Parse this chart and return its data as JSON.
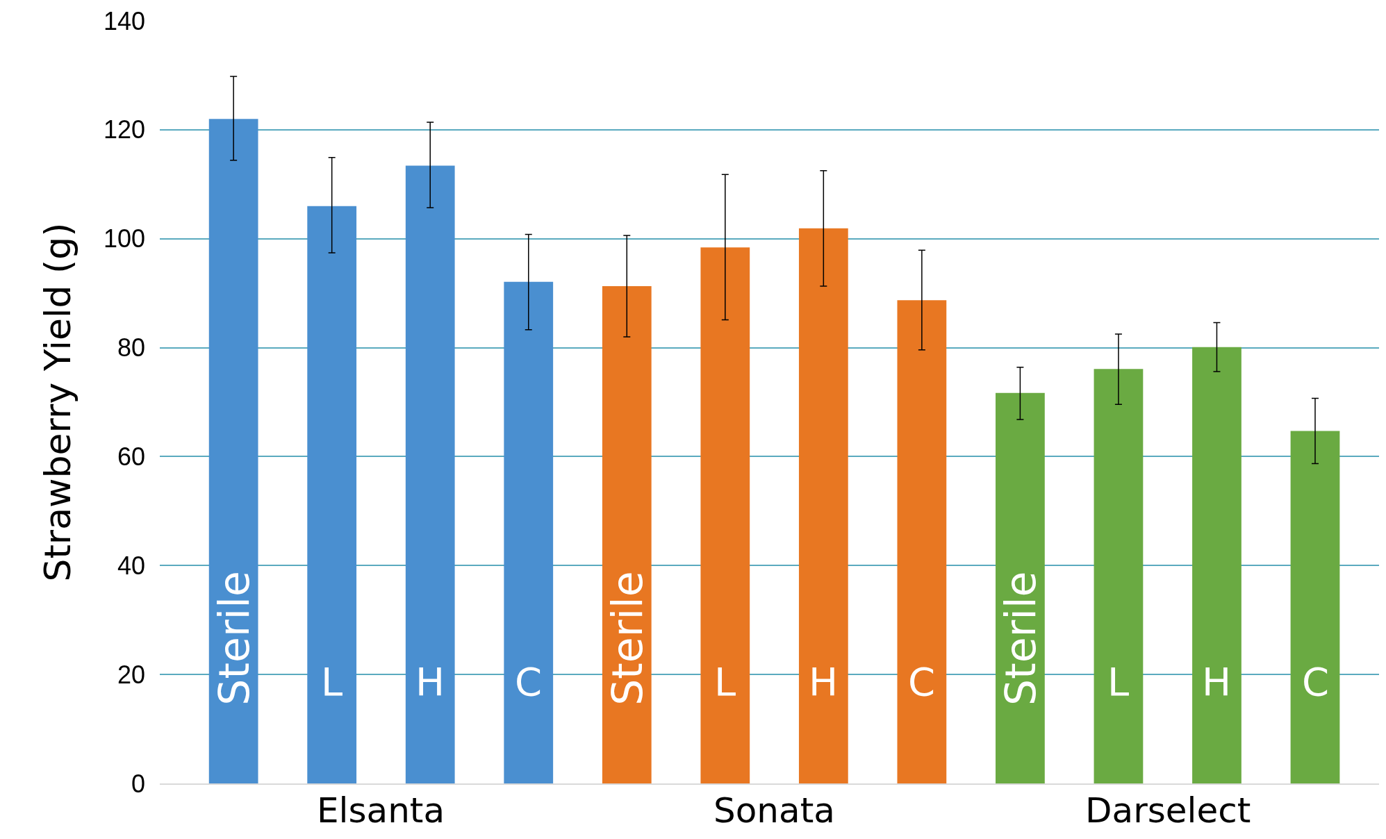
{
  "chart_data": {
    "type": "bar",
    "ylabel": "Strawberry Yield (g)",
    "categories": [
      "Sterile",
      "L",
      "H",
      "C",
      "Sterile",
      "L",
      "H",
      "C",
      "Sterile",
      "L",
      "H",
      "C"
    ],
    "values": [
      122.0,
      106.0,
      113.4,
      92.1,
      91.3,
      98.4,
      101.9,
      88.7,
      71.7,
      76.1,
      80.1,
      64.7
    ],
    "colors": [
      "#4a8fd0",
      "#4a8fd0",
      "#4a8fd0",
      "#4a8fd0",
      "#e87722",
      "#e87722",
      "#e87722",
      "#e87722",
      "#6aaa42",
      "#6aaa42",
      "#6aaa42",
      "#6aaa42"
    ],
    "errors": [
      [
        114.4,
        129.8
      ],
      [
        97.4,
        114.9
      ],
      [
        105.7,
        121.4
      ],
      [
        83.3,
        100.8
      ],
      [
        82.0,
        100.6
      ],
      [
        85.1,
        111.8
      ],
      [
        91.3,
        112.5
      ],
      [
        79.6,
        97.9
      ],
      [
        66.8,
        76.4
      ],
      [
        69.6,
        82.5
      ],
      [
        75.6,
        84.6
      ],
      [
        58.7,
        70.7
      ]
    ],
    "annotations": [
      "Elsanta",
      "Sonata",
      "Darselect"
    ],
    "ylim": [
      0,
      140
    ],
    "yticks": [
      0,
      20,
      40,
      60,
      80,
      100,
      120,
      140
    ],
    "grid": "y",
    "tick_labels": "y"
  }
}
